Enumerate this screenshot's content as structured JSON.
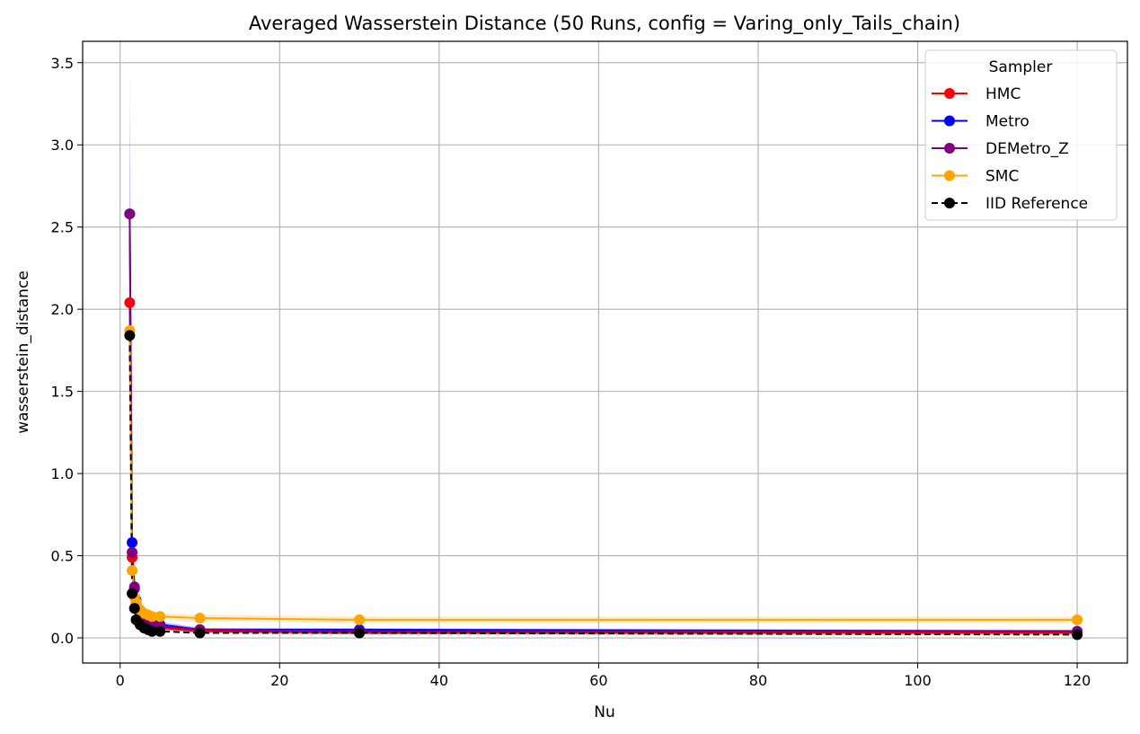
{
  "chart_data": {
    "type": "line",
    "title": "Averaged Wasserstein Distance (50 Runs, config = Varing_only_Tails_chain)",
    "xlabel": "Nu",
    "ylabel": "wasserstein_distance",
    "xlim": [
      -4.7,
      126.3
    ],
    "ylim": [
      -0.153,
      3.63
    ],
    "xticks": [
      0,
      20,
      40,
      60,
      80,
      100,
      120
    ],
    "xtick_labels": [
      "0",
      "20",
      "40",
      "60",
      "80",
      "100",
      "120"
    ],
    "yticks": [
      0.0,
      0.5,
      1.0,
      1.5,
      2.0,
      2.5,
      3.0,
      3.5
    ],
    "ytick_labels": [
      "0.0",
      "0.5",
      "1.0",
      "1.5",
      "2.0",
      "2.5",
      "3.0",
      "3.5"
    ],
    "grid": true,
    "legend": {
      "title": "Sampler",
      "position": "top-right"
    },
    "x": [
      1.2,
      1.5,
      1.8,
      2.0,
      2.5,
      3.0,
      3.5,
      4.0,
      5.0,
      10.0,
      30.0,
      120.0
    ],
    "series": [
      {
        "name": "HMC",
        "color": "#ff0000",
        "dashed": false,
        "values": [
          2.04,
          0.49,
          0.25,
          0.2,
          0.13,
          0.1,
          0.08,
          0.07,
          0.06,
          0.04,
          0.03,
          0.03
        ],
        "upper": [
          2.3,
          0.6,
          0.3,
          0.24,
          0.16,
          0.12,
          0.1,
          0.09,
          0.08,
          0.05,
          0.04,
          0.04
        ],
        "lower": [
          1.8,
          0.4,
          0.2,
          0.16,
          0.1,
          0.08,
          0.07,
          0.06,
          0.05,
          0.03,
          0.02,
          0.02
        ]
      },
      {
        "name": "Metro",
        "color": "#0000ff",
        "dashed": false,
        "values": [
          2.58,
          0.58,
          0.3,
          0.23,
          0.15,
          0.12,
          0.1,
          0.09,
          0.08,
          0.05,
          0.05,
          0.04
        ],
        "upper": [
          3.46,
          0.75,
          0.38,
          0.28,
          0.19,
          0.15,
          0.13,
          0.11,
          0.1,
          0.06,
          0.06,
          0.05
        ],
        "lower": [
          1.9,
          0.45,
          0.22,
          0.18,
          0.12,
          0.1,
          0.08,
          0.07,
          0.06,
          0.04,
          0.04,
          0.03
        ]
      },
      {
        "name": "DEMetro_Z",
        "color": "#800080",
        "dashed": false,
        "values": [
          2.58,
          0.52,
          0.31,
          0.22,
          0.14,
          0.11,
          0.09,
          0.08,
          0.07,
          0.05,
          0.04,
          0.04
        ],
        "upper": [
          3.25,
          0.65,
          0.38,
          0.27,
          0.18,
          0.14,
          0.11,
          0.1,
          0.09,
          0.06,
          0.05,
          0.05
        ],
        "lower": [
          2.0,
          0.42,
          0.25,
          0.18,
          0.11,
          0.09,
          0.07,
          0.06,
          0.05,
          0.04,
          0.03,
          0.03
        ]
      },
      {
        "name": "SMC",
        "color": "#ffa500",
        "dashed": false,
        "values": [
          1.87,
          0.41,
          0.25,
          0.22,
          0.17,
          0.15,
          0.14,
          0.13,
          0.13,
          0.12,
          0.11,
          0.11
        ],
        "upper": [
          2.0,
          0.48,
          0.29,
          0.26,
          0.2,
          0.17,
          0.16,
          0.15,
          0.15,
          0.14,
          0.13,
          0.13
        ],
        "lower": [
          1.75,
          0.35,
          0.21,
          0.18,
          0.14,
          0.13,
          0.12,
          0.11,
          0.11,
          0.1,
          0.09,
          0.09
        ]
      },
      {
        "name": "IID Reference",
        "color": "#000000",
        "dashed": true,
        "values": [
          1.84,
          0.27,
          0.18,
          0.11,
          0.08,
          0.06,
          0.05,
          0.04,
          0.04,
          0.03,
          0.03,
          0.02
        ]
      }
    ]
  }
}
